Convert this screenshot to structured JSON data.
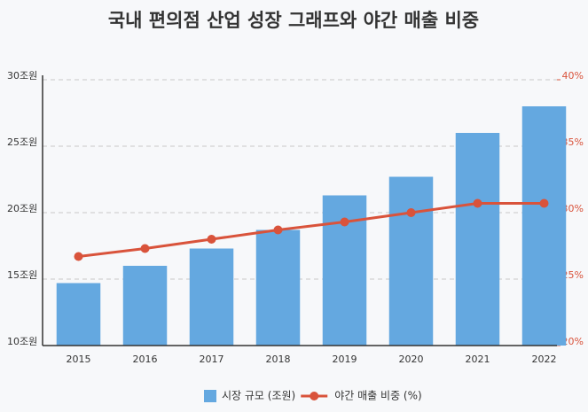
{
  "chart_data": {
    "type": "bar",
    "title": "국내 편의점 산업 성장 그래프와 야간 매출 비중",
    "categories": [
      "2015",
      "2016",
      "2017",
      "2018",
      "2019",
      "2020",
      "2021",
      "2022"
    ],
    "series": [
      {
        "name": "시장 규모 (조원)",
        "type": "bar",
        "color": "#64a8e0",
        "values": [
          14.7,
          16.0,
          17.3,
          18.7,
          21.3,
          22.7,
          26.0,
          28.0
        ]
      },
      {
        "name": "야간 매출 비중 (%)",
        "type": "line",
        "axis": "y2",
        "color": "#d9533b",
        "values": [
          26.7,
          27.3,
          28.0,
          28.7,
          29.3,
          30.0,
          30.7,
          30.7
        ]
      }
    ],
    "ylim": [
      10,
      30
    ],
    "yticks": [
      {
        "value": 10,
        "label": "10조원"
      },
      {
        "value": 15,
        "label": "15조원"
      },
      {
        "value": 20,
        "label": "20조원"
      },
      {
        "value": 25,
        "label": "25조원"
      },
      {
        "value": 30,
        "label": "30조원"
      }
    ],
    "y2lim": [
      20,
      40
    ],
    "y2ticks": [
      {
        "value": 20,
        "label": "20%"
      },
      {
        "value": 25,
        "label": "25%"
      },
      {
        "value": 30,
        "label": "30%"
      },
      {
        "value": 35,
        "label": "35%"
      },
      {
        "value": 40,
        "label": "40%"
      }
    ],
    "grid": true
  }
}
